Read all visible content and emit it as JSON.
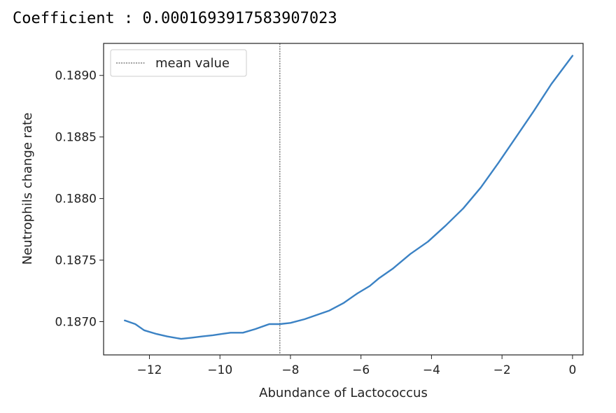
{
  "header": {
    "coefficient_label": "Coefficient",
    "separator": " : ",
    "coefficient_value": "0.0001693917583907023"
  },
  "chart_data": {
    "type": "line",
    "title": "",
    "xlabel": "Abundance of Lactococcus",
    "ylabel": "Neutrophils change rate",
    "xlim": [
      -13.3,
      0.3
    ],
    "ylim": [
      0.18673,
      0.18926
    ],
    "xticks": [
      -12,
      -10,
      -8,
      -6,
      -4,
      -2,
      0
    ],
    "xtick_labels": [
      "−12",
      "−10",
      "−8",
      "−6",
      "−4",
      "−2",
      "0"
    ],
    "yticks": [
      0.187,
      0.1875,
      0.188,
      0.1885,
      0.189
    ],
    "ytick_labels": [
      "0.1870",
      "0.1875",
      "0.1880",
      "0.1885",
      "0.1890"
    ],
    "grid": false,
    "legend_position": "top-left",
    "series": [
      {
        "color": "#3b82c4",
        "x": [
          -12.7,
          -12.4,
          -12.15,
          -11.8,
          -11.5,
          -11.1,
          -10.8,
          -10.5,
          -10.2,
          -9.95,
          -9.7,
          -9.35,
          -9.0,
          -8.6,
          -8.3,
          -8.0,
          -7.6,
          -7.2,
          -6.9,
          -6.5,
          -6.1,
          -5.75,
          -5.5,
          -5.1,
          -4.6,
          -4.1,
          -3.6,
          -3.1,
          -2.6,
          -2.1,
          -1.6,
          -1.1,
          -0.6,
          0.0
        ],
        "y": [
          0.18701,
          0.18698,
          0.18693,
          0.1869,
          0.18688,
          0.18686,
          0.18687,
          0.18688,
          0.18689,
          0.1869,
          0.18691,
          0.18691,
          0.18694,
          0.18698,
          0.18698,
          0.18699,
          0.18702,
          0.18706,
          0.18709,
          0.18715,
          0.18723,
          0.18729,
          0.18735,
          0.18743,
          0.18755,
          0.18765,
          0.18778,
          0.18792,
          0.18809,
          0.18829,
          0.1885,
          0.18871,
          0.18893,
          0.18916
        ]
      }
    ],
    "reference_lines": [
      {
        "orientation": "vertical",
        "x": -8.3,
        "style": "dotted",
        "color": "#444444",
        "label": "mean value"
      }
    ]
  }
}
